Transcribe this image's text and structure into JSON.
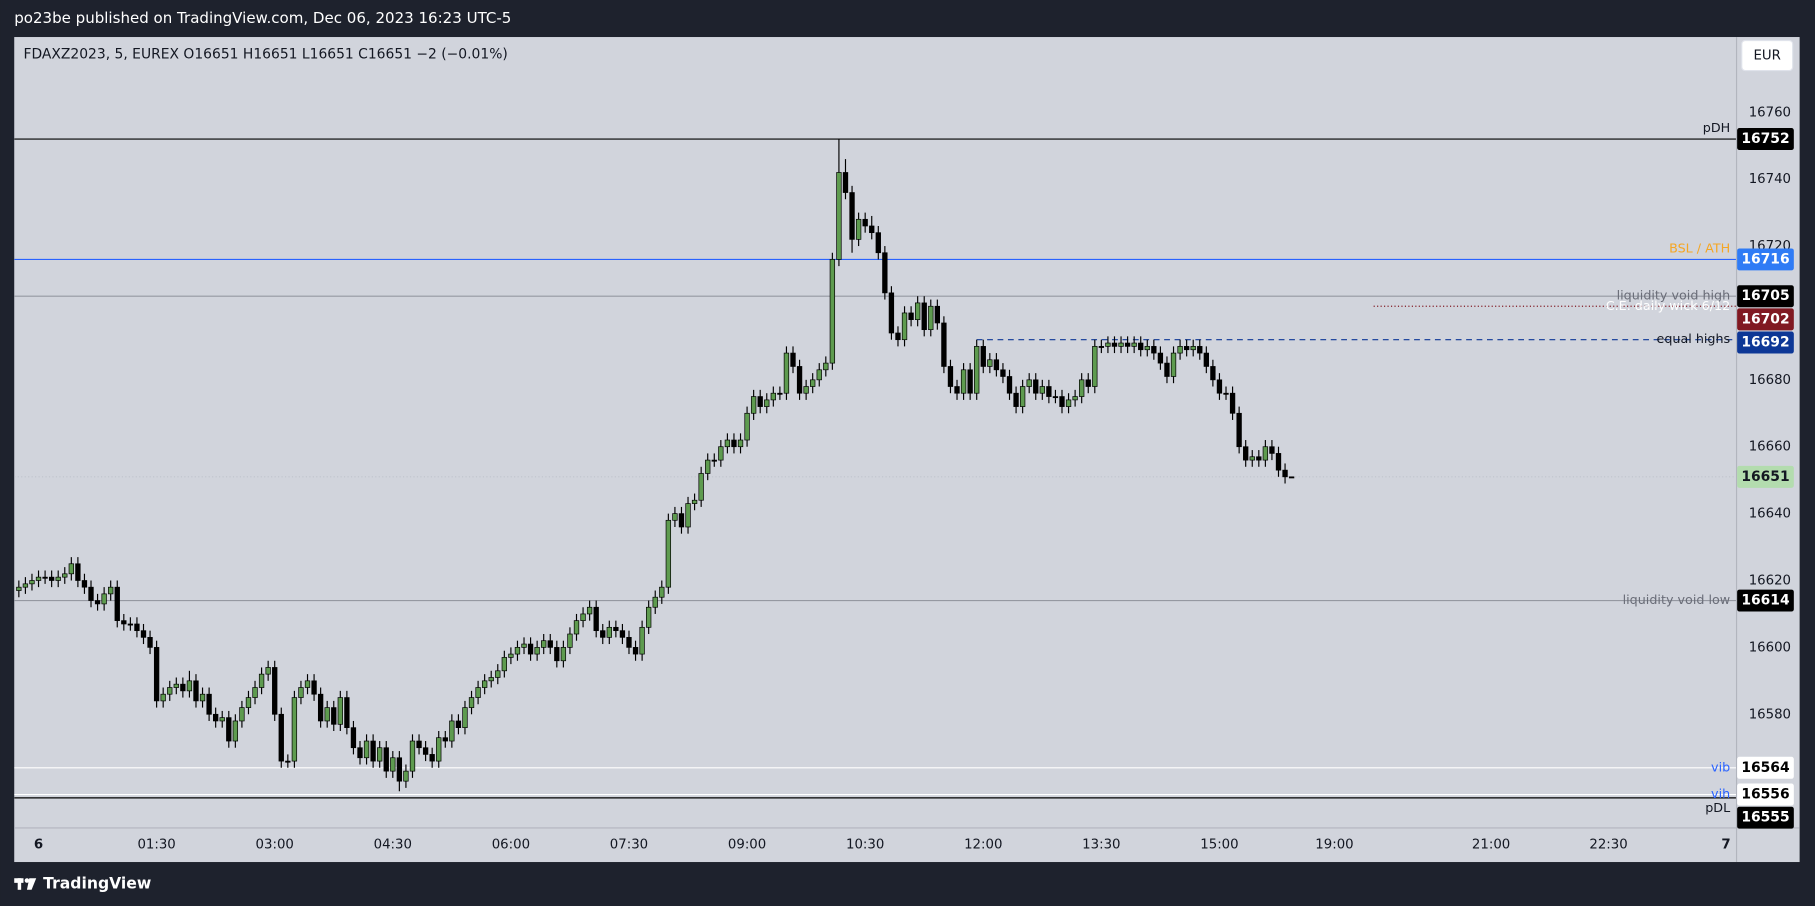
{
  "publisher_line": "po23be published on TradingView.com, Dec 06, 2023 16:23 UTC-5",
  "brand": "TradingView",
  "currency": "EUR",
  "chart_data": {
    "type": "candlestick",
    "legend": "FDAXZ2023, 5, EUREX  O16651  H16651  L16651  C16651  −2 (−0.01%)",
    "up_color": "#5e9b4f",
    "down_color": "#000000",
    "wick_color": "#000000",
    "last_price_color": "#b3dcae",
    "grid": false,
    "ylim": [
      16546.2,
      16782.5
    ],
    "yticks": [
      16580,
      16600,
      16620,
      16640,
      16660,
      16680,
      16720,
      16740,
      16760
    ],
    "xlim": [
      -18.5,
      1447.6
    ],
    "xticks": [
      {
        "value": 0,
        "label": "6"
      },
      {
        "value": 90,
        "label": "01:30"
      },
      {
        "value": 180,
        "label": "03:00"
      },
      {
        "value": 270,
        "label": "04:30"
      },
      {
        "value": 360,
        "label": "06:00"
      },
      {
        "value": 450,
        "label": "07:30"
      },
      {
        "value": 540,
        "label": "09:00"
      },
      {
        "value": 630,
        "label": "10:30"
      },
      {
        "value": 720,
        "label": "12:00"
      },
      {
        "value": 810,
        "label": "13:30"
      },
      {
        "value": 900,
        "label": "15:00"
      },
      {
        "value": 1140,
        "label": "19:00"
      },
      {
        "value": 1260,
        "label": "21:00"
      },
      {
        "value": 1350,
        "label": "22:30"
      },
      {
        "value": 1440,
        "label": "7"
      }
    ],
    "x": [
      -15,
      -10,
      -5,
      0,
      5,
      10,
      15,
      20,
      25,
      30,
      35,
      40,
      45,
      50,
      55,
      60,
      65,
      70,
      75,
      80,
      85,
      90,
      95,
      100,
      105,
      110,
      115,
      120,
      125,
      130,
      135,
      140,
      145,
      150,
      155,
      160,
      165,
      170,
      175,
      180,
      185,
      190,
      195,
      200,
      205,
      210,
      215,
      220,
      225,
      230,
      235,
      240,
      245,
      250,
      255,
      260,
      265,
      270,
      275,
      280,
      285,
      290,
      295,
      300,
      305,
      310,
      315,
      320,
      325,
      330,
      335,
      340,
      345,
      350,
      355,
      360,
      365,
      370,
      375,
      380,
      385,
      390,
      395,
      400,
      405,
      410,
      415,
      420,
      425,
      430,
      435,
      440,
      445,
      450,
      455,
      460,
      465,
      470,
      475,
      480,
      485,
      490,
      495,
      500,
      505,
      510,
      515,
      520,
      525,
      530,
      535,
      540,
      545,
      550,
      555,
      560,
      565,
      570,
      575,
      580,
      585,
      590,
      595,
      600,
      605,
      610,
      615,
      620,
      625,
      630,
      635,
      640,
      645,
      650,
      655,
      660,
      665,
      670,
      675,
      680,
      685,
      690,
      695,
      700,
      705,
      710,
      715,
      720,
      725,
      730,
      735,
      740,
      745,
      750,
      755,
      760,
      765,
      770,
      775,
      780,
      785,
      790,
      795,
      800,
      805,
      810,
      815,
      820,
      825,
      830,
      835,
      840,
      845,
      850,
      855,
      860,
      865,
      870,
      875,
      880,
      885,
      890,
      895,
      900,
      905,
      910,
      915,
      920,
      925,
      930,
      935,
      940,
      945,
      950,
      955
    ],
    "open": [
      16617,
      16618,
      16619,
      16620,
      16621,
      16621,
      16620,
      16621,
      16622,
      16625,
      16620,
      16618,
      16614,
      16613,
      16616,
      16618,
      16608,
      16607,
      16607,
      16605,
      16603,
      16600,
      16584,
      16586,
      16588,
      16589,
      16587,
      16590,
      16584,
      16586,
      16580,
      16578,
      16579,
      16572,
      16578,
      16582,
      16585,
      16588,
      16592,
      16594,
      16580,
      16566,
      16566,
      16585,
      16588,
      16590,
      16586,
      16578,
      16582,
      16577,
      16585,
      16576,
      16570,
      16567,
      16572,
      16566,
      16570,
      16563,
      16567,
      16560,
      16563,
      16572,
      16570,
      16568,
      16566,
      16573,
      16572,
      16578,
      16576,
      16582,
      16585,
      16588,
      16590,
      16591,
      16593,
      16597,
      16598,
      16600,
      16601,
      16598,
      16600,
      16602,
      16600,
      16596,
      16600,
      16604,
      16608,
      16610,
      16612,
      16605,
      16603,
      16606,
      16605,
      16603,
      16600,
      16598,
      16606,
      16612,
      16615,
      16618,
      16638,
      16640,
      16636,
      16643,
      16644,
      16652,
      16656,
      16656,
      16660,
      16662,
      16660,
      16662,
      16670,
      16675,
      16672,
      16674,
      16676,
      16676,
      16688,
      16684,
      16676,
      16678,
      16680,
      16683,
      16685,
      16716,
      16742,
      16736,
      16722,
      16728,
      16726,
      16724,
      16718,
      16706,
      16694,
      16692,
      16700,
      16698,
      16703,
      16695,
      16702,
      16697,
      16684,
      16678,
      16676,
      16683,
      16676,
      16690,
      16684,
      16686,
      16683,
      16681,
      16676,
      16672,
      16678,
      16680,
      16676,
      16678,
      16675,
      16675,
      16672,
      16674,
      16675,
      16680,
      16678,
      16690,
      16690,
      16691,
      16690,
      16691,
      16690,
      16691,
      16689,
      16690,
      16688,
      16685,
      16681,
      16688,
      16690,
      16689,
      16690,
      16688,
      16684,
      16680,
      16676,
      16676,
      16670,
      16660,
      16656,
      16657,
      16656,
      16660,
      16658,
      16653,
      16651
    ],
    "high": [
      16620,
      16621,
      16622,
      16623,
      16623,
      16623,
      16623,
      16624,
      16627,
      16627,
      16622,
      16620,
      16616,
      16618,
      16620,
      16620,
      16610,
      16609,
      16609,
      16607,
      16605,
      16602,
      16588,
      16590,
      16591,
      16591,
      16593,
      16592,
      16588,
      16588,
      16582,
      16581,
      16581,
      16580,
      16584,
      16587,
      16590,
      16594,
      16596,
      16596,
      16582,
      16568,
      16587,
      16590,
      16592,
      16592,
      16588,
      16584,
      16584,
      16587,
      16587,
      16578,
      16572,
      16574,
      16574,
      16572,
      16572,
      16569,
      16569,
      16565,
      16574,
      16574,
      16572,
      16570,
      16575,
      16575,
      16580,
      16580,
      16584,
      16587,
      16590,
      16592,
      16593,
      16595,
      16599,
      16600,
      16602,
      16603,
      16603,
      16602,
      16604,
      16604,
      16602,
      16602,
      16606,
      16610,
      16612,
      16614,
      16614,
      16607,
      16608,
      16608,
      16607,
      16605,
      16602,
      16608,
      16614,
      16617,
      16620,
      16640,
      16642,
      16642,
      16645,
      16646,
      16654,
      16658,
      16658,
      16662,
      16664,
      16664,
      16664,
      16672,
      16677,
      16677,
      16676,
      16678,
      16678,
      16690,
      16690,
      16686,
      16680,
      16682,
      16685,
      16687,
      16718,
      16752,
      16746,
      16738,
      16730,
      16730,
      16729,
      16726,
      16720,
      16708,
      16696,
      16702,
      16702,
      16705,
      16705,
      16704,
      16704,
      16699,
      16686,
      16680,
      16685,
      16685,
      16692,
      16692,
      16688,
      16688,
      16685,
      16683,
      16678,
      16680,
      16682,
      16682,
      16680,
      16680,
      16677,
      16677,
      16676,
      16677,
      16682,
      16682,
      16692,
      16692,
      16693,
      16693,
      16693,
      16693,
      16693,
      16693,
      16692,
      16692,
      16690,
      16687,
      16690,
      16692,
      16692,
      16692,
      16692,
      16690,
      16686,
      16682,
      16678,
      16678,
      16672,
      16662,
      16659,
      16659,
      16662,
      16662,
      16660,
      16655,
      16651
    ],
    "low": [
      16615,
      16616,
      16617,
      16618,
      16619,
      16618,
      16618,
      16619,
      16620,
      16618,
      16616,
      16612,
      16611,
      16611,
      16614,
      16606,
      16605,
      16605,
      16603,
      16601,
      16598,
      16582,
      16582,
      16584,
      16586,
      16585,
      16585,
      16582,
      16582,
      16578,
      16576,
      16576,
      16570,
      16570,
      16576,
      16580,
      16583,
      16586,
      16590,
      16578,
      16564,
      16564,
      16564,
      16583,
      16586,
      16584,
      16576,
      16576,
      16575,
      16575,
      16574,
      16568,
      16565,
      16565,
      16564,
      16564,
      16561,
      16561,
      16557,
      16558,
      16561,
      16568,
      16566,
      16564,
      16564,
      16570,
      16570,
      16574,
      16574,
      16580,
      16583,
      16586,
      16588,
      16589,
      16591,
      16595,
      16596,
      16598,
      16596,
      16596,
      16598,
      16598,
      16594,
      16594,
      16598,
      16602,
      16606,
      16608,
      16603,
      16601,
      16601,
      16603,
      16601,
      16598,
      16596,
      16596,
      16604,
      16610,
      16613,
      16616,
      16636,
      16634,
      16634,
      16641,
      16642,
      16650,
      16654,
      16654,
      16658,
      16658,
      16658,
      16660,
      16668,
      16670,
      16670,
      16672,
      16674,
      16674,
      16682,
      16674,
      16674,
      16676,
      16678,
      16681,
      16683,
      16714,
      16734,
      16718,
      16720,
      16724,
      16722,
      16716,
      16704,
      16692,
      16690,
      16690,
      16696,
      16696,
      16693,
      16693,
      16695,
      16682,
      16676,
      16674,
      16674,
      16674,
      16674,
      16682,
      16682,
      16681,
      16679,
      16674,
      16670,
      16670,
      16676,
      16674,
      16674,
      16673,
      16673,
      16670,
      16670,
      16672,
      16673,
      16676,
      16676,
      16688,
      16688,
      16688,
      16688,
      16688,
      16688,
      16687,
      16687,
      16686,
      16683,
      16679,
      16679,
      16686,
      16687,
      16687,
      16686,
      16682,
      16678,
      16674,
      16674,
      16668,
      16658,
      16654,
      16654,
      16654,
      16654,
      16656,
      16651,
      16649,
      16651
    ],
    "close": [
      16618,
      16619,
      16620,
      16621,
      16621,
      16620,
      16621,
      16622,
      16625,
      16620,
      16618,
      16614,
      16613,
      16616,
      16618,
      16608,
      16607,
      16607,
      16605,
      16603,
      16600,
      16584,
      16586,
      16588,
      16589,
      16587,
      16590,
      16584,
      16586,
      16580,
      16578,
      16579,
      16572,
      16578,
      16582,
      16585,
      16588,
      16592,
      16594,
      16580,
      16566,
      16566,
      16585,
      16588,
      16590,
      16586,
      16578,
      16582,
      16577,
      16585,
      16576,
      16570,
      16567,
      16572,
      16566,
      16570,
      16563,
      16567,
      16560,
      16563,
      16572,
      16570,
      16568,
      16566,
      16573,
      16572,
      16578,
      16576,
      16582,
      16585,
      16588,
      16590,
      16591,
      16593,
      16597,
      16598,
      16600,
      16601,
      16598,
      16600,
      16602,
      16600,
      16596,
      16600,
      16604,
      16608,
      16610,
      16612,
      16605,
      16603,
      16606,
      16605,
      16603,
      16600,
      16598,
      16606,
      16612,
      16615,
      16618,
      16638,
      16640,
      16636,
      16643,
      16644,
      16652,
      16656,
      16656,
      16660,
      16662,
      16660,
      16662,
      16670,
      16675,
      16672,
      16674,
      16676,
      16676,
      16688,
      16684,
      16676,
      16678,
      16680,
      16683,
      16685,
      16716,
      16742,
      16736,
      16722,
      16728,
      16726,
      16724,
      16718,
      16706,
      16694,
      16692,
      16700,
      16698,
      16703,
      16695,
      16702,
      16697,
      16684,
      16678,
      16676,
      16683,
      16676,
      16690,
      16684,
      16686,
      16683,
      16681,
      16676,
      16672,
      16678,
      16680,
      16676,
      16678,
      16675,
      16675,
      16672,
      16674,
      16675,
      16680,
      16678,
      16690,
      16690,
      16691,
      16690,
      16691,
      16690,
      16691,
      16689,
      16690,
      16688,
      16685,
      16681,
      16688,
      16690,
      16689,
      16690,
      16688,
      16684,
      16680,
      16676,
      16676,
      16670,
      16660,
      16656,
      16657,
      16656,
      16660,
      16658,
      16653,
      16651,
      16651
    ],
    "levels": [
      {
        "name": "pDH",
        "value": 16752,
        "color": "#000000",
        "name_color": "#131722",
        "badge_color": "#000000",
        "badge_text_color": "#ffffff",
        "label_position": "above"
      },
      {
        "name": "BSL / ATH",
        "value": 16716,
        "color": "#2962ff",
        "name_color": "#f5a623",
        "badge_color": "#2f7bf5",
        "badge_text_color": "#ffffff",
        "label_position": "above"
      },
      {
        "name": "liquidity void high",
        "value": 16705,
        "color": "#9598a1",
        "name_color": "#6a6d78",
        "badge_color": "#000000",
        "badge_text_color": "#ffffff"
      },
      {
        "name": "C.E. daily wick 6/12",
        "value": 16702,
        "color": "#801922",
        "name_color": "#ffffff",
        "badge_color": "#801922",
        "badge_text_color": "#ffffff",
        "style": "dotted",
        "start": 1170
      },
      {
        "name": "equal highs",
        "value": 16692,
        "color": "#0d3796",
        "name_color": "#131722",
        "badge_color": "#0d3796",
        "badge_text_color": "#ffffff",
        "style": "dashed",
        "start": 715
      },
      {
        "name": "liquidity void low",
        "value": 16614,
        "color": "#9598a1",
        "name_color": "#6a6d78",
        "badge_color": "#000000",
        "badge_text_color": "#ffffff"
      },
      {
        "name": "vib",
        "value": 16564,
        "color": "#ffffff",
        "name_color": "#2962ff",
        "badge_color": "#ffffff",
        "badge_text_color": "#000000"
      },
      {
        "name": "vih",
        "value": 16556,
        "color": "#ffffff",
        "name_color": "#2962ff",
        "badge_color": "#ffffff",
        "badge_text_color": "#000000"
      },
      {
        "name": "pDL",
        "value": 16555,
        "color": "#000000",
        "name_color": "#131722",
        "badge_color": "#000000",
        "badge_text_color": "#ffffff",
        "label_position": "below"
      }
    ]
  }
}
